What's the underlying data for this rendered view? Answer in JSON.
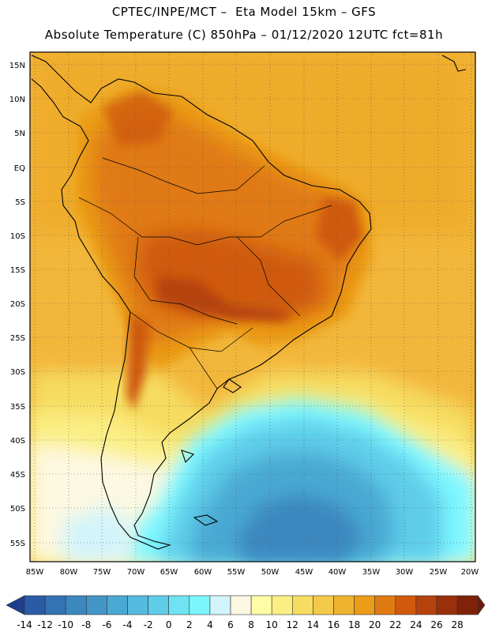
{
  "header": {
    "line1": "CPTEC/INPE/MCT –  Eta Model 15km – GFS",
    "line2": "Absolute Temperature (C) 850hPa – 01/12/2020 12UTC fct=81h"
  },
  "map": {
    "lat_labels": [
      "15N",
      "10N",
      "5N",
      "EQ",
      "5S",
      "10S",
      "15S",
      "20S",
      "25S",
      "30S",
      "35S",
      "40S",
      "45S",
      "50S",
      "55S"
    ],
    "lon_labels": [
      "85W",
      "80W",
      "75W",
      "70W",
      "65W",
      "60W",
      "55W",
      "50W",
      "45W",
      "40W",
      "35W",
      "30W",
      "25W",
      "20W"
    ],
    "ocean_color": "#f2b63a",
    "grid": "dotted"
  },
  "colorbar": {
    "labels": [
      "-14",
      "-12",
      "-10",
      "-8",
      "-6",
      "-4",
      "-2",
      "0",
      "2",
      "4",
      "6",
      "8",
      "10",
      "12",
      "14",
      "16",
      "18",
      "20",
      "22",
      "24",
      "26",
      "28"
    ],
    "colors": [
      "#1e3f8c",
      "#2a5ca6",
      "#3372b3",
      "#3b87c0",
      "#4296c6",
      "#4aa9d2",
      "#54bbdf",
      "#5fcde9",
      "#6fe3f3",
      "#7df7ff",
      "#d2f4fb",
      "#fdf8e1",
      "#fefca5",
      "#fbee84",
      "#f6dc60",
      "#f2c94a",
      "#efb330",
      "#eb9c18",
      "#e07a12",
      "#cf5a0e",
      "#b6420c",
      "#9a300b",
      "#7f2209",
      "#6a1c0c"
    ]
  }
}
